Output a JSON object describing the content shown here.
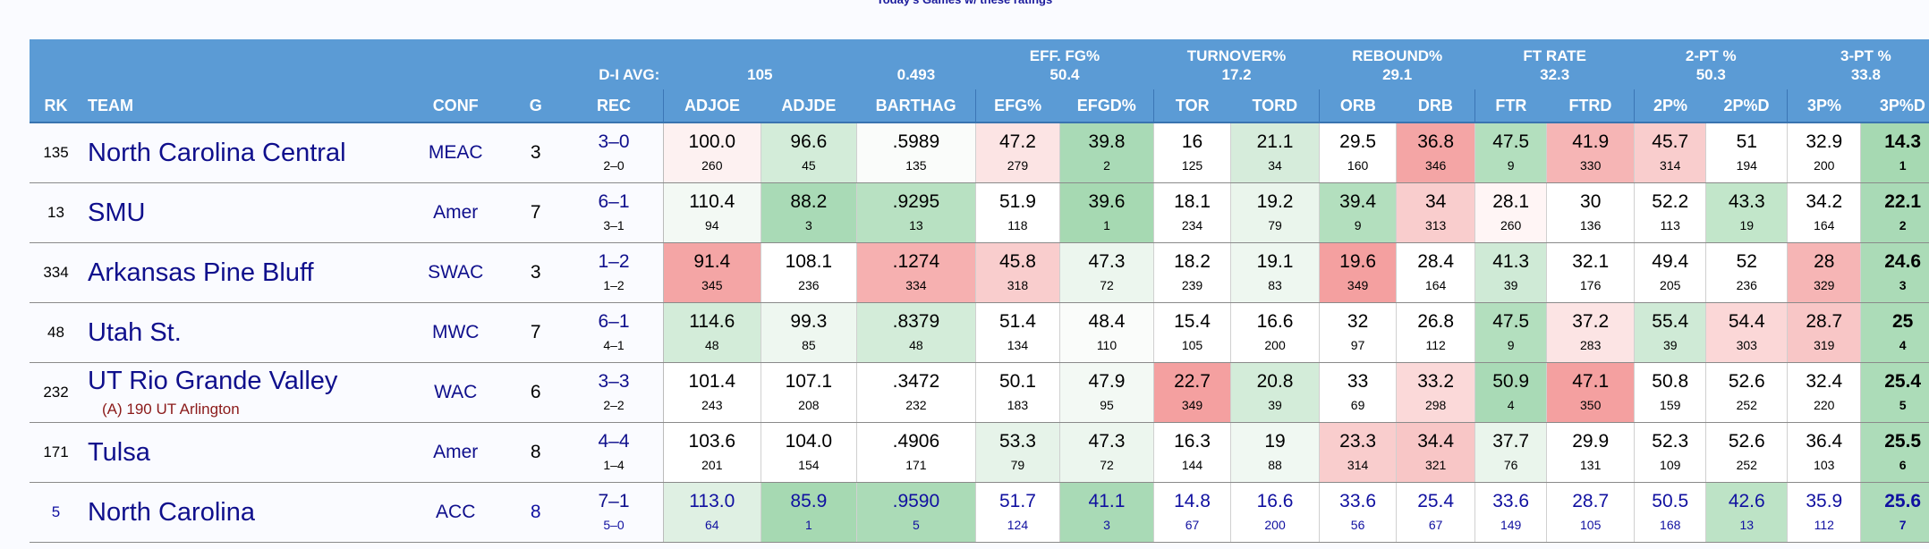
{
  "top_note": "Today's Games w/ these ratings",
  "header": {
    "davg_label": "D-I AVG:",
    "davg_adjoe": "105",
    "davg_barthag": "0.493",
    "groups": [
      {
        "title": "EFF. FG%",
        "avg": "50.4"
      },
      {
        "title": "TURNOVER%",
        "avg": "17.2"
      },
      {
        "title": "REBOUND%",
        "avg": "29.1"
      },
      {
        "title": "FT RATE",
        "avg": "32.3"
      },
      {
        "title": "2-PT %",
        "avg": "50.3"
      },
      {
        "title": "3-PT %",
        "avg": "33.8"
      }
    ],
    "columns": [
      "RK",
      "TEAM",
      "CONF",
      "G",
      "REC",
      "ADJOE",
      "ADJDE",
      "BARTHAG",
      "EFG%",
      "EFGD%",
      "TOR",
      "TORD",
      "ORB",
      "DRB",
      "FTR",
      "FTRD",
      "2P%",
      "2P%D",
      "3P%",
      "3P%D"
    ]
  },
  "colors": {
    "header_bg": "#5b9bd5",
    "team_text": "#0f0f8c",
    "sub_text": "#8b1a1a"
  },
  "rows": [
    {
      "rk": "135",
      "team": "North Carolina Central",
      "sub": "",
      "conf": "MEAC",
      "g": "3",
      "rec": "3–0",
      "rec2": "2–0",
      "cells": [
        [
          "100.0",
          "260",
          "#fdf1f1"
        ],
        [
          "96.6",
          "45",
          "#d3ecd9"
        ],
        [
          ".5989",
          "135",
          "#fafcfa"
        ],
        [
          "47.2",
          "279",
          "#fce4e4"
        ],
        [
          "39.8",
          "2",
          "#a9dab6"
        ],
        [
          "16",
          "125",
          "#ffffff"
        ],
        [
          "21.1",
          "34",
          "#d6ecdb"
        ],
        [
          "29.5",
          "160",
          "#ffffff"
        ],
        [
          "36.8",
          "346",
          "#f4a5a5"
        ],
        [
          "47.5",
          "9",
          "#b3dfbe"
        ],
        [
          "41.9",
          "330",
          "#f6b5b5"
        ],
        [
          "45.7",
          "314",
          "#f9cdcd"
        ],
        [
          "51",
          "194",
          "#ffffff"
        ],
        [
          "32.9",
          "200",
          "#ffffff"
        ],
        [
          "14.3",
          "1",
          "#a6d9b2"
        ]
      ]
    },
    {
      "rk": "13",
      "team": "SMU",
      "sub": "",
      "conf": "Amer",
      "g": "7",
      "rec": "6–1",
      "rec2": "3–1",
      "cells": [
        [
          "110.4",
          "94",
          "#f3f9f4"
        ],
        [
          "88.2",
          "3",
          "#a9dab6"
        ],
        [
          ".9295",
          "13",
          "#b8e1c2"
        ],
        [
          "51.9",
          "118",
          "#ffffff"
        ],
        [
          "39.6",
          "1",
          "#a6d9b2"
        ],
        [
          "18.1",
          "234",
          "#ffffff"
        ],
        [
          "19.2",
          "79",
          "#eaf5ec"
        ],
        [
          "39.4",
          "9",
          "#b3dfbe"
        ],
        [
          "34",
          "313",
          "#f9cdcd"
        ],
        [
          "28.1",
          "260",
          "#fff5f5"
        ],
        [
          "30",
          "136",
          "#ffffff"
        ],
        [
          "52.2",
          "113",
          "#ffffff"
        ],
        [
          "43.3",
          "19",
          "#c2e6ca"
        ],
        [
          "34.2",
          "164",
          "#ffffff"
        ],
        [
          "22.1",
          "2",
          "#a9dab6"
        ]
      ]
    },
    {
      "rk": "334",
      "team": "Arkansas Pine Bluff",
      "sub": "",
      "conf": "SWAC",
      "g": "3",
      "rec": "1–2",
      "rec2": "1–2",
      "cells": [
        [
          "91.4",
          "345",
          "#f4a5a5"
        ],
        [
          "108.1",
          "236",
          "#ffffff"
        ],
        [
          ".1274",
          "334",
          "#f6b0b0"
        ],
        [
          "45.8",
          "318",
          "#f9cdcd"
        ],
        [
          "47.3",
          "72",
          "#ecf6ee"
        ],
        [
          "18.2",
          "239",
          "#ffffff"
        ],
        [
          "19.1",
          "83",
          "#eef7f0"
        ],
        [
          "19.6",
          "349",
          "#f4a0a0"
        ],
        [
          "28.4",
          "164",
          "#ffffff"
        ],
        [
          "41.3",
          "39",
          "#cfead6"
        ],
        [
          "32.1",
          "176",
          "#ffffff"
        ],
        [
          "49.4",
          "205",
          "#ffffff"
        ],
        [
          "52",
          "236",
          "#ffffff"
        ],
        [
          "28",
          "329",
          "#f6b5b5"
        ],
        [
          "24.6",
          "3",
          "#abdbb7"
        ]
      ]
    },
    {
      "rk": "48",
      "team": "Utah St.",
      "sub": "",
      "conf": "MWC",
      "g": "7",
      "rec": "6–1",
      "rec2": "4–1",
      "cells": [
        [
          "114.6",
          "48",
          "#d3ecd9"
        ],
        [
          "99.3",
          "85",
          "#eef7f0"
        ],
        [
          ".8379",
          "48",
          "#d3ecd9"
        ],
        [
          "51.4",
          "134",
          "#ffffff"
        ],
        [
          "48.4",
          "110",
          "#fafcfa"
        ],
        [
          "15.4",
          "105",
          "#ffffff"
        ],
        [
          "16.6",
          "200",
          "#ffffff"
        ],
        [
          "32",
          "97",
          "#ffffff"
        ],
        [
          "26.8",
          "112",
          "#ffffff"
        ],
        [
          "47.5",
          "9",
          "#b3dfbe"
        ],
        [
          "37.2",
          "283",
          "#fce4e4"
        ],
        [
          "55.4",
          "39",
          "#cfead6"
        ],
        [
          "54.4",
          "303",
          "#fbd7d7"
        ],
        [
          "28.7",
          "319",
          "#f8c6c6"
        ],
        [
          "25",
          "4",
          "#acdcb8"
        ]
      ]
    },
    {
      "rk": "232",
      "team": "UT Rio Grande Valley",
      "sub": "(A) 190 UT Arlington",
      "conf": "WAC",
      "g": "6",
      "rec": "3–3",
      "rec2": "2–2",
      "cells": [
        [
          "101.4",
          "243",
          "#ffffff"
        ],
        [
          "107.1",
          "208",
          "#ffffff"
        ],
        [
          ".3472",
          "232",
          "#ffffff"
        ],
        [
          "50.1",
          "183",
          "#ffffff"
        ],
        [
          "47.9",
          "95",
          "#f3f9f4"
        ],
        [
          "22.7",
          "349",
          "#f4a0a0"
        ],
        [
          "20.8",
          "39",
          "#d3ecd9"
        ],
        [
          "33",
          "69",
          "#ffffff"
        ],
        [
          "33.2",
          "298",
          "#fbd9d9"
        ],
        [
          "50.9",
          "4",
          "#a9dab6"
        ],
        [
          "47.1",
          "350",
          "#f4a0a0"
        ],
        [
          "50.8",
          "159",
          "#ffffff"
        ],
        [
          "52.6",
          "252",
          "#ffffff"
        ],
        [
          "32.4",
          "220",
          "#ffffff"
        ],
        [
          "25.4",
          "5",
          "#acdcb8"
        ]
      ]
    },
    {
      "rk": "171",
      "team": "Tulsa",
      "sub": "",
      "conf": "Amer",
      "g": "8",
      "rec": "4–4",
      "rec2": "1–4",
      "cells": [
        [
          "103.6",
          "201",
          "#ffffff"
        ],
        [
          "104.0",
          "154",
          "#ffffff"
        ],
        [
          ".4906",
          "171",
          "#ffffff"
        ],
        [
          "53.3",
          "79",
          "#e6f3e9"
        ],
        [
          "47.3",
          "72",
          "#ecf6ee"
        ],
        [
          "16.3",
          "144",
          "#ffffff"
        ],
        [
          "19",
          "88",
          "#f0f8f2"
        ],
        [
          "23.3",
          "314",
          "#f9cdcd"
        ],
        [
          "34.4",
          "321",
          "#f8c6c6"
        ],
        [
          "37.7",
          "76",
          "#eaf5ec"
        ],
        [
          "29.9",
          "131",
          "#ffffff"
        ],
        [
          "52.3",
          "109",
          "#ffffff"
        ],
        [
          "52.6",
          "252",
          "#ffffff"
        ],
        [
          "36.4",
          "103",
          "#ffffff"
        ],
        [
          "25.5",
          "6",
          "#addcb9"
        ]
      ]
    },
    {
      "rk": "5",
      "team": "North Carolina",
      "sub": "",
      "conf": "ACC",
      "g": "8",
      "rec": "7–1",
      "rec2": "5–0",
      "blue": true,
      "cells": [
        [
          "113.0",
          "64",
          "#dff0e3"
        ],
        [
          "85.9",
          "1",
          "#a6d9b2"
        ],
        [
          ".9590",
          "5",
          "#abdbb7"
        ],
        [
          "51.7",
          "124",
          "#ffffff"
        ],
        [
          "41.1",
          "3",
          "#a9dab6"
        ],
        [
          "14.8",
          "67",
          "#ffffff"
        ],
        [
          "16.6",
          "200",
          "#ffffff"
        ],
        [
          "33.6",
          "56",
          "#ffffff"
        ],
        [
          "25.4",
          "67",
          "#ffffff"
        ],
        [
          "33.6",
          "149",
          "#ffffff"
        ],
        [
          "28.7",
          "105",
          "#ffffff"
        ],
        [
          "50.5",
          "168",
          "#ffffff"
        ],
        [
          "42.6",
          "13",
          "#bde3c6"
        ],
        [
          "35.9",
          "112",
          "#ffffff"
        ],
        [
          "25.6",
          "7",
          "#aedcba"
        ]
      ]
    }
  ]
}
